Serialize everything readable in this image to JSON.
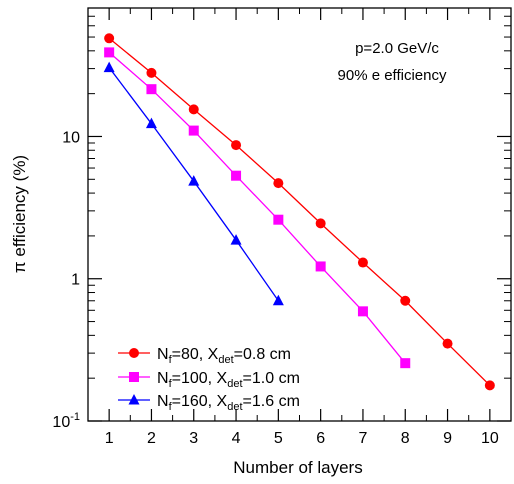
{
  "chart_data": {
    "type": "line",
    "xlabel": "Number of layers",
    "ylabel": "π efficiency (%)",
    "yscale": "log",
    "xlim": [
      0.5,
      10.5
    ],
    "ylim": [
      0.1,
      80
    ],
    "x_ticks": [
      "1",
      "2",
      "3",
      "4",
      "5",
      "6",
      "7",
      "8",
      "9",
      "10"
    ],
    "y_ticks": [
      {
        "value": 0.1,
        "base": "10",
        "exp": "-1"
      },
      {
        "value": 1,
        "base": "1",
        "exp": ""
      },
      {
        "value": 10,
        "base": "10",
        "exp": ""
      }
    ],
    "annotations": [
      "p=2.0 GeV/c",
      "90% e efficiency"
    ],
    "grid": false,
    "legend_position": "bottom-left",
    "series": [
      {
        "legend": {
          "a": "N",
          "a_sub": "f",
          "b": "=80, X",
          "b_sub": "det",
          "c": "=0.8 cm"
        },
        "color": "#ff0000",
        "marker": "circle",
        "x": [
          1,
          2,
          3,
          4,
          5,
          6,
          7,
          8,
          9,
          10
        ],
        "values": [
          49,
          28,
          15.5,
          8.7,
          4.7,
          2.45,
          1.3,
          0.7,
          0.35,
          0.178
        ]
      },
      {
        "legend": {
          "a": "N",
          "a_sub": "f",
          "b": "=100, X",
          "b_sub": "det",
          "c": "=1.0 cm"
        },
        "color": "#ff00ff",
        "marker": "square",
        "x": [
          1,
          2,
          3,
          4,
          5,
          6,
          7,
          8
        ],
        "values": [
          39,
          21.5,
          11,
          5.3,
          2.6,
          1.22,
          0.59,
          0.255
        ]
      },
      {
        "legend": {
          "a": "N",
          "a_sub": "f",
          "b": "=160, X",
          "b_sub": "det",
          "c": "=1.6 cm"
        },
        "color": "#0000ff",
        "marker": "triangle",
        "x": [
          1,
          2,
          3,
          4,
          5
        ],
        "values": [
          30.5,
          12.3,
          4.85,
          1.87,
          0.7
        ]
      }
    ]
  }
}
